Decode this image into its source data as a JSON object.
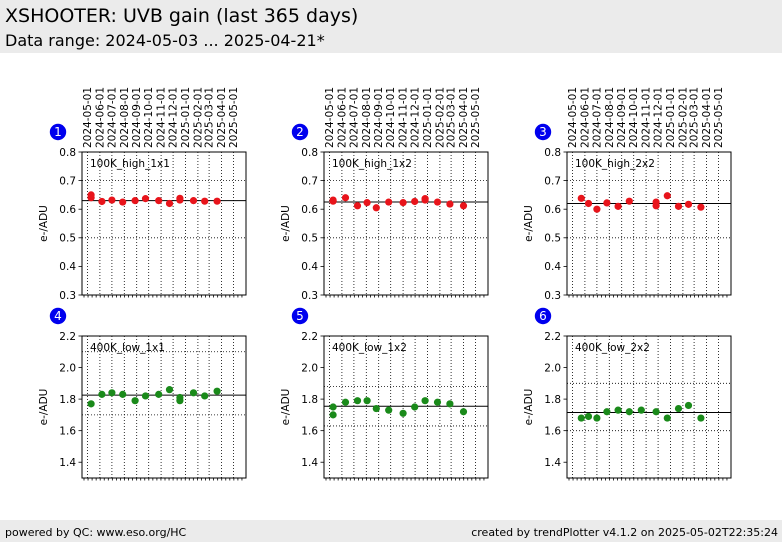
{
  "header": {
    "title": "XSHOOTER: UVB gain (last 365 days)",
    "subtitle": "Data range: 2024-05-03 ... 2025-04-21*"
  },
  "footer": {
    "left": "powered by QC: www.eso.org/HC",
    "right": "created by trendPlotter v4.1.2 on 2025-05-02T22:35:24"
  },
  "colors": {
    "red": "#e8141b",
    "green": "#1a8a1a",
    "badge": "#0000ee"
  },
  "chart_data": [
    {
      "type": "scatter",
      "badge": "1",
      "label": "100K_high_1x1",
      "ylabel": "e-/ADU",
      "ylim": [
        0.3,
        0.8
      ],
      "yticks": [
        "0.3",
        "0.4",
        "0.5",
        "0.6",
        "0.7",
        "0.8"
      ],
      "xlim": [
        "2024-04-22",
        "2025-05-16"
      ],
      "xticks": [
        "2024-05-01",
        "2024-06-01",
        "2024-07-01",
        "2024-08-01",
        "2024-09-01",
        "2024-10-01",
        "2024-11-01",
        "2024-12-01",
        "2025-01-01",
        "2025-02-01",
        "2025-03-01",
        "2025-04-01",
        "2025-05-01"
      ],
      "reference": 0.63,
      "grid_y": [
        0.7,
        0.5
      ],
      "color": "red",
      "points": [
        [
          "2024-05-10",
          0.64
        ],
        [
          "2024-05-10",
          0.65
        ],
        [
          "2024-06-06",
          0.627
        ],
        [
          "2024-07-01",
          0.632
        ],
        [
          "2024-07-28",
          0.625
        ],
        [
          "2024-08-28",
          0.63
        ],
        [
          "2024-09-23",
          0.637
        ],
        [
          "2024-10-26",
          0.63
        ],
        [
          "2024-11-22",
          0.62
        ],
        [
          "2024-12-18",
          0.638
        ],
        [
          "2024-12-18",
          0.632
        ],
        [
          "2025-01-21",
          0.63
        ],
        [
          "2025-02-18",
          0.628
        ],
        [
          "2025-03-21",
          0.628
        ]
      ]
    },
    {
      "type": "scatter",
      "badge": "2",
      "label": "100K_high_1x2",
      "ylabel": "e-/ADU",
      "ylim": [
        0.3,
        0.8
      ],
      "yticks": [
        "0.3",
        "0.4",
        "0.5",
        "0.6",
        "0.7",
        "0.8"
      ],
      "xlim": [
        "2024-04-22",
        "2025-05-16"
      ],
      "xticks": [
        "2024-05-01",
        "2024-06-01",
        "2024-07-01",
        "2024-08-01",
        "2024-09-01",
        "2024-10-01",
        "2024-11-01",
        "2024-12-01",
        "2025-01-01",
        "2025-02-01",
        "2025-03-01",
        "2025-04-01",
        "2025-05-01"
      ],
      "reference": 0.625,
      "grid_y": [
        0.7,
        0.5
      ],
      "color": "red",
      "points": [
        [
          "2024-05-10",
          0.628
        ],
        [
          "2024-05-10",
          0.632
        ],
        [
          "2024-06-10",
          0.64
        ],
        [
          "2024-07-10",
          0.612
        ],
        [
          "2024-08-03",
          0.623
        ],
        [
          "2024-08-26",
          0.605
        ],
        [
          "2024-09-26",
          0.625
        ],
        [
          "2024-11-01",
          0.623
        ],
        [
          "2024-11-30",
          0.627
        ],
        [
          "2024-12-26",
          0.637
        ],
        [
          "2024-12-26",
          0.632
        ],
        [
          "2025-01-26",
          0.625
        ],
        [
          "2025-02-26",
          0.618
        ],
        [
          "2025-04-01",
          0.612
        ]
      ]
    },
    {
      "type": "scatter",
      "badge": "3",
      "label": "100K_high_2x2",
      "ylabel": "e-/ADU",
      "ylim": [
        0.3,
        0.8
      ],
      "yticks": [
        "0.3",
        "0.4",
        "0.5",
        "0.6",
        "0.7",
        "0.8"
      ],
      "xlim": [
        "2024-04-22",
        "2025-05-16"
      ],
      "xticks": [
        "2024-05-01",
        "2024-06-01",
        "2024-07-01",
        "2024-08-01",
        "2024-09-01",
        "2024-10-01",
        "2024-11-01",
        "2024-12-01",
        "2025-01-01",
        "2025-02-01",
        "2025-03-01",
        "2025-04-01",
        "2025-05-01"
      ],
      "reference": 0.62,
      "grid_y": [
        0.7,
        0.5
      ],
      "color": "red",
      "points": [
        [
          "2024-05-23",
          0.638
        ],
        [
          "2024-06-10",
          0.62
        ],
        [
          "2024-07-01",
          0.6
        ],
        [
          "2024-07-26",
          0.622
        ],
        [
          "2024-08-23",
          0.61
        ],
        [
          "2024-09-20",
          0.628
        ],
        [
          "2024-11-26",
          0.625
        ],
        [
          "2024-11-26",
          0.612
        ],
        [
          "2024-12-24",
          0.647
        ],
        [
          "2025-01-21",
          0.61
        ],
        [
          "2025-02-15",
          0.617
        ],
        [
          "2025-03-18",
          0.607
        ]
      ]
    },
    {
      "type": "scatter",
      "badge": "4",
      "label": "400K_low_1x1",
      "ylabel": "e-/ADU",
      "ylim": [
        1.3,
        2.2
      ],
      "yticks": [
        "1.4",
        "1.6",
        "1.8",
        "2.0",
        "2.2"
      ],
      "xlim": [
        "2024-04-22",
        "2025-05-16"
      ],
      "xticks": [
        "2024-05-01",
        "2024-06-01",
        "2024-07-01",
        "2024-08-01",
        "2024-09-01",
        "2024-10-01",
        "2024-11-01",
        "2024-12-01",
        "2025-01-01",
        "2025-02-01",
        "2025-03-01",
        "2025-04-01",
        "2025-05-01"
      ],
      "reference": 1.825,
      "grid_y": [
        2.1,
        1.7
      ],
      "color": "green",
      "points": [
        [
          "2024-05-10",
          1.77
        ],
        [
          "2024-06-06",
          1.83
        ],
        [
          "2024-07-01",
          1.84
        ],
        [
          "2024-07-28",
          1.83
        ],
        [
          "2024-08-28",
          1.79
        ],
        [
          "2024-09-23",
          1.82
        ],
        [
          "2024-10-26",
          1.83
        ],
        [
          "2024-11-22",
          1.86
        ],
        [
          "2024-12-18",
          1.81
        ],
        [
          "2024-12-18",
          1.79
        ],
        [
          "2025-01-21",
          1.84
        ],
        [
          "2025-02-18",
          1.82
        ],
        [
          "2025-03-21",
          1.85
        ]
      ]
    },
    {
      "type": "scatter",
      "badge": "5",
      "label": "400K_low_1x2",
      "ylabel": "e-/ADU",
      "ylim": [
        1.3,
        2.2
      ],
      "yticks": [
        "1.4",
        "1.6",
        "1.8",
        "2.0",
        "2.2"
      ],
      "xlim": [
        "2024-04-22",
        "2025-05-16"
      ],
      "xticks": [
        "2024-05-01",
        "2024-06-01",
        "2024-07-01",
        "2024-08-01",
        "2024-09-01",
        "2024-10-01",
        "2024-11-01",
        "2024-12-01",
        "2025-01-01",
        "2025-02-01",
        "2025-03-01",
        "2025-04-01",
        "2025-05-01"
      ],
      "reference": 1.755,
      "grid_y": [
        1.88,
        1.63
      ],
      "color": "green",
      "points": [
        [
          "2024-05-10",
          1.7
        ],
        [
          "2024-05-10",
          1.75
        ],
        [
          "2024-06-10",
          1.78
        ],
        [
          "2024-07-10",
          1.79
        ],
        [
          "2024-08-03",
          1.79
        ],
        [
          "2024-08-26",
          1.74
        ],
        [
          "2024-09-26",
          1.73
        ],
        [
          "2024-11-01",
          1.71
        ],
        [
          "2024-11-30",
          1.75
        ],
        [
          "2024-12-26",
          1.79
        ],
        [
          "2025-01-26",
          1.78
        ],
        [
          "2025-02-26",
          1.77
        ],
        [
          "2025-04-01",
          1.72
        ]
      ]
    },
    {
      "type": "scatter",
      "badge": "6",
      "label": "400K_low_2x2",
      "ylabel": "e-/ADU",
      "ylim": [
        1.3,
        2.2
      ],
      "yticks": [
        "1.4",
        "1.6",
        "1.8",
        "2.0",
        "2.2"
      ],
      "xlim": [
        "2024-04-22",
        "2025-05-16"
      ],
      "xticks": [
        "2024-05-01",
        "2024-06-01",
        "2024-07-01",
        "2024-08-01",
        "2024-09-01",
        "2024-10-01",
        "2024-11-01",
        "2024-12-01",
        "2025-01-01",
        "2025-02-01",
        "2025-03-01",
        "2025-04-01",
        "2025-05-01"
      ],
      "reference": 1.715,
      "grid_y": [
        1.9,
        1.6
      ],
      "color": "green",
      "points": [
        [
          "2024-05-23",
          1.68
        ],
        [
          "2024-06-10",
          1.69
        ],
        [
          "2024-07-01",
          1.68
        ],
        [
          "2024-07-26",
          1.72
        ],
        [
          "2024-08-23",
          1.73
        ],
        [
          "2024-09-20",
          1.72
        ],
        [
          "2024-10-20",
          1.73
        ],
        [
          "2024-11-26",
          1.72
        ],
        [
          "2024-12-24",
          1.68
        ],
        [
          "2025-01-21",
          1.74
        ],
        [
          "2025-02-15",
          1.76
        ],
        [
          "2025-03-18",
          1.68
        ]
      ]
    }
  ]
}
